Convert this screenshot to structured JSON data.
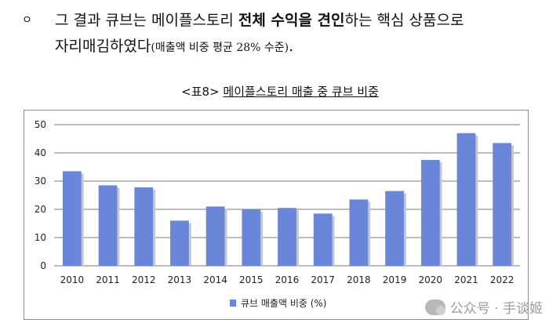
{
  "paragraph": {
    "bullet": "ㅇ",
    "text_before": "그 결과 큐브는 메이플스토리 ",
    "bold": "전체 수익을 견인",
    "text_after": "하는 핵심 상품으로",
    "line2_main": "자리매김하였다",
    "line2_note": "(매출액 비중 평균 28% 수준)",
    "line2_end": "."
  },
  "caption": {
    "tag": "<표8>",
    "title": "메이플스토리 매출 중 큐브 비중"
  },
  "watermark": {
    "text": "公众号 · 手谈姬"
  },
  "colors": {
    "bar": "#6a86d8",
    "bar_shadow": "#c8c8c8",
    "grid": "#7a7a7a"
  },
  "chart_data": {
    "type": "bar",
    "categories": [
      "2010",
      "2011",
      "2012",
      "2013",
      "2014",
      "2015",
      "2016",
      "2017",
      "2018",
      "2019",
      "2020",
      "2021",
      "2022"
    ],
    "series": [
      {
        "name": "큐브 매출액 비중 (%)",
        "values": [
          33.5,
          28.5,
          27.8,
          16,
          21,
          20,
          20.5,
          18.5,
          23.5,
          26.5,
          37.5,
          47,
          43.5
        ]
      }
    ],
    "yticks": [
      "0",
      "10",
      "20",
      "30",
      "40",
      "50"
    ],
    "ylim": [
      0,
      50
    ],
    "grid": true,
    "legend": "bottom",
    "title": "",
    "xlabel": "",
    "ylabel": ""
  }
}
